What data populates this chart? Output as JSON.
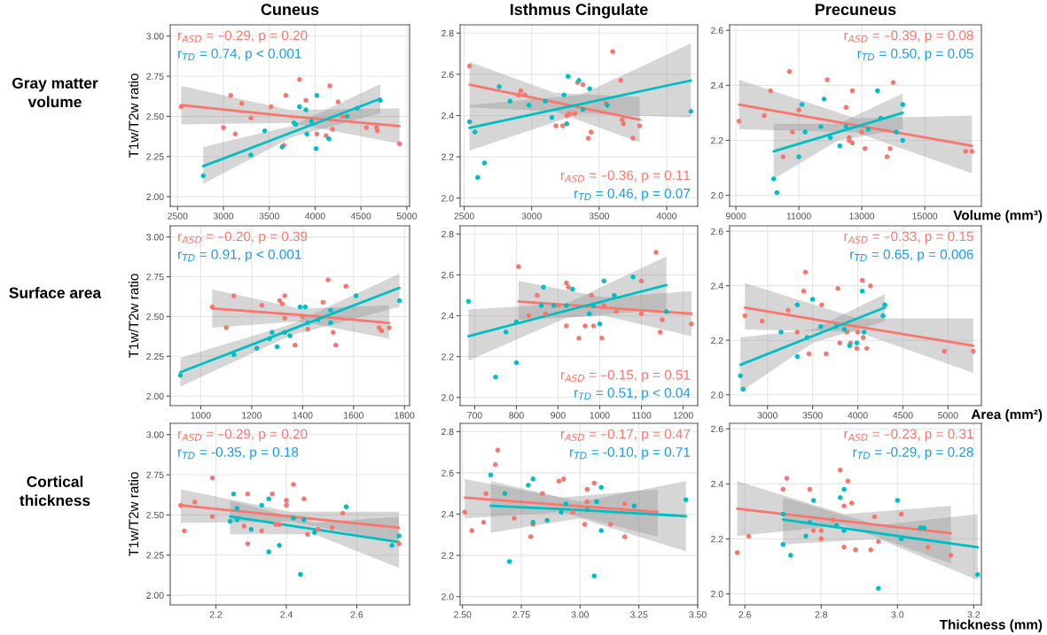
{
  "chart_data": [
    {
      "type": "scatter",
      "title": "Cuneus",
      "ylabel": "T1w/T2w ratio",
      "annotations": [
        "Gray matter volume",
        "r$_{ASD}$ = –0.29, p = 0.20",
        "r$_{TD}$ = 0.74, p < 0.001"
      ],
      "xlim": [
        2420,
        5030
      ],
      "xticks": [
        2500,
        3000,
        3500,
        4000,
        4500,
        5000
      ],
      "ylim": [
        1.94,
        3.07
      ],
      "yticks": [
        {
          "value": 2,
          "label": "2.00"
        },
        {
          "value": 2.25,
          "label": "2.25"
        },
        {
          "value": 2.5,
          "label": "2.50"
        },
        {
          "value": 2.75,
          "label": "2.75"
        },
        {
          "value": 3,
          "label": "3.00"
        }
      ],
      "grid": true,
      "marker": "circle",
      "series": [
        {
          "type": "scatter",
          "color": "#f8766d",
          "x": [
            2540,
            3000,
            3080,
            3130,
            3200,
            3300,
            3520,
            3660,
            3680,
            3830,
            3900,
            3970,
            4020,
            4120,
            4160,
            4190,
            4250,
            4300,
            4560,
            4670,
            4680,
            4920
          ],
          "values": [
            2.56,
            2.43,
            2.63,
            2.39,
            2.58,
            2.49,
            2.56,
            2.32,
            2.63,
            2.73,
            2.6,
            null,
            2.39,
            2.38,
            2.69,
            2.42,
            2.59,
            2.5,
            2.43,
            2.43,
            2.41,
            2.33
          ]
        },
        {
          "type": "scatter",
          "color": "#00bfc4",
          "x": [
            2780,
            3300,
            3450,
            3640,
            3770,
            3790,
            3830,
            3900,
            3910,
            3960,
            4010,
            4020,
            4150,
            4350,
            4460,
            4710
          ],
          "values": [
            2.13,
            2.26,
            2.41,
            2.31,
            2.46,
            2.45,
            2.56,
            2.54,
            2.39,
            2.47,
            2.3,
            2.63,
            2.36,
            2.5,
            2.55,
            2.6
          ]
        },
        {
          "type": "line",
          "marker": "none",
          "color": "#f8766d",
          "x": [
            2540,
            3730,
            4920
          ],
          "values": [
            2.57,
            2.5,
            2.44
          ],
          "lower": [
            2.45,
            2.46,
            2.33
          ],
          "upper": [
            2.69,
            2.54,
            2.55
          ]
        },
        {
          "type": "line",
          "marker": "none",
          "color": "#00bfc4",
          "x": [
            2780,
            3745,
            4710
          ],
          "values": [
            2.19,
            2.4,
            2.61
          ],
          "lower": [
            2.08,
            2.37,
            2.52
          ],
          "upper": [
            2.31,
            2.44,
            2.7
          ]
        }
      ]
    },
    {
      "type": "scatter",
      "title": "Isthmus Cingulate",
      "annotations": [
        "r$_{ASD}$ = –0.36, p = 0.11",
        "r$_{TD}$ = 0.46, p = 0.07"
      ],
      "xlim": [
        2470,
        4230
      ],
      "xticks": [
        2500,
        3000,
        3500,
        4000
      ],
      "ylim": [
        1.96,
        2.84
      ],
      "yticks": [
        {
          "value": 2,
          "label": "2.0"
        },
        2.2,
        2.4,
        2.6,
        2.8
      ],
      "grid": true,
      "marker": "circle",
      "series": [
        {
          "type": "scatter",
          "color": "#f8766d",
          "x": [
            2540,
            2900,
            2920,
            2950,
            3180,
            3230,
            3260,
            3280,
            3320,
            3340,
            3380,
            3420,
            3440,
            3550,
            3600,
            3660,
            3670,
            3680,
            3750,
            3800
          ],
          "values": [
            2.64,
            2.5,
            2.52,
            2.5,
            2.35,
            2.35,
            2.4,
            2.41,
            2.41,
            2.56,
            2.55,
            2.29,
            2.32,
            2.46,
            2.71,
            2.57,
            2.38,
            2.36,
            2.29,
            2.35
          ]
        },
        {
          "type": "scatter",
          "color": "#00bfc4",
          "x": [
            2540,
            2580,
            2600,
            2650,
            2760,
            2840,
            2980,
            3100,
            3150,
            3240,
            3260,
            3270,
            3350,
            3380,
            3430,
            3560,
            4180
          ],
          "values": [
            2.37,
            2.32,
            2.1,
            2.17,
            2.54,
            2.47,
            2.45,
            2.47,
            2.39,
            2.5,
            2.36,
            2.59,
            2.57,
            2.43,
            2.53,
            2.45,
            2.42
          ]
        },
        {
          "type": "line",
          "marker": "none",
          "color": "#f8766d",
          "x": [
            2540,
            3170,
            3800
          ],
          "values": [
            2.55,
            2.465,
            2.38
          ],
          "lower": [
            2.44,
            2.42,
            2.27
          ],
          "upper": [
            2.66,
            2.51,
            2.49
          ]
        },
        {
          "type": "line",
          "marker": "none",
          "color": "#00bfc4",
          "x": [
            2540,
            3360,
            4180
          ],
          "values": [
            2.34,
            2.455,
            2.57
          ],
          "lower": [
            2.23,
            2.41,
            2.39
          ],
          "upper": [
            2.45,
            2.5,
            2.75
          ]
        }
      ]
    },
    {
      "type": "scatter",
      "title": "Precuneus",
      "xlabel": "Volume (mm³)",
      "annotations": [
        "r$_{ASD}$ = –0.39, p = 0.08",
        "r$_{TD}$ = 0.50, p = 0.05"
      ],
      "xlim": [
        8800,
        16800
      ],
      "xticks": [
        9000,
        11000,
        13000,
        15000
      ],
      "ylim": [
        1.96,
        2.62
      ],
      "yticks": [
        {
          "value": 2,
          "label": "2.0"
        },
        2.2,
        2.4,
        2.6
      ],
      "grid": true,
      "marker": "circle",
      "series": [
        {
          "type": "scatter",
          "color": "#f8766d",
          "x": [
            9100,
            9900,
            10100,
            10500,
            10700,
            10800,
            11000,
            11900,
            12500,
            12600,
            12600,
            12700,
            12700,
            13000,
            13100,
            13800,
            13900,
            14000,
            14300,
            16300,
            16500
          ],
          "values": [
            2.27,
            2.29,
            2.38,
            2.14,
            2.45,
            2.23,
            2.31,
            2.42,
            2.32,
            2.2,
            2.21,
            2.19,
            2.38,
            2.23,
            2.17,
            2.14,
            2.17,
            2.41,
            null,
            2.16,
            2.16
          ]
        },
        {
          "type": "scatter",
          "color": "#00bfc4",
          "x": [
            10200,
            10300,
            11000,
            11100,
            11200,
            11700,
            11800,
            12000,
            12300,
            12500,
            13200,
            13500,
            13600,
            14100,
            14300,
            14300
          ],
          "values": [
            2.06,
            2.01,
            2.14,
            2.33,
            2.23,
            2.25,
            2.35,
            2.21,
            2.18,
            2.25,
            2.24,
            2.38,
            2.28,
            2.23,
            2.2,
            2.33
          ]
        },
        {
          "type": "line",
          "marker": "none",
          "color": "#f8766d",
          "x": [
            9100,
            12800,
            16500
          ],
          "values": [
            2.33,
            2.255,
            2.18
          ],
          "lower": [
            2.24,
            2.23,
            2.08
          ],
          "upper": [
            2.42,
            2.28,
            2.29
          ]
        },
        {
          "type": "line",
          "marker": "none",
          "color": "#00bfc4",
          "x": [
            10200,
            12250,
            14300
          ],
          "values": [
            2.16,
            2.23,
            2.3
          ],
          "lower": [
            2.06,
            2.2,
            2.24
          ],
          "upper": [
            2.26,
            2.26,
            2.37
          ]
        }
      ]
    },
    {
      "type": "scatter",
      "ylabel": "T1w/T2w ratio",
      "annotations": [
        "Surface area",
        "r$_{ASD}$ = –0.20, p = 0.39",
        "r$_{TD}$ = 0.91, p < 0.001"
      ],
      "xlim": [
        880,
        1820
      ],
      "xticks": [
        1000,
        1200,
        1400,
        1600,
        1800
      ],
      "ylim": [
        1.94,
        3.07
      ],
      "yticks": [
        {
          "value": 2,
          "label": "2.00"
        },
        {
          "value": 2.25,
          "label": "2.25"
        },
        {
          "value": 2.5,
          "label": "2.50"
        },
        {
          "value": 2.75,
          "label": "2.75"
        },
        {
          "value": 3,
          "label": "3.00"
        }
      ],
      "grid": true,
      "marker": "circle",
      "series": [
        {
          "type": "scatter",
          "color": "#f8766d",
          "x": [
            1045,
            1100,
            1130,
            1240,
            1310,
            1320,
            1330,
            1330,
            1370,
            1400,
            1420,
            1480,
            1500,
            1510,
            1520,
            1530,
            1570,
            1700,
            1710,
            1740
          ],
          "values": [
            2.56,
            2.43,
            2.63,
            2.57,
            2.6,
            2.58,
            2.63,
            2.49,
            2.32,
            2.5,
            2.42,
            2.59,
            2.73,
            null,
            2.4,
            2.32,
            2.69,
            2.43,
            2.41,
            2.43
          ]
        },
        {
          "type": "scatter",
          "color": "#00bfc4",
          "x": [
            920,
            1130,
            1220,
            1270,
            1280,
            1300,
            1330,
            1350,
            1390,
            1410,
            1420,
            1460,
            1510,
            1510,
            1610,
            1780
          ],
          "values": [
            2.13,
            2.26,
            2.3,
            2.36,
            2.4,
            2.31,
            2.4,
            2.38,
            2.56,
            2.56,
            2.46,
            2.48,
            2.54,
            2.46,
            2.63,
            2.6
          ]
        },
        {
          "type": "line",
          "marker": "none",
          "color": "#f8766d",
          "x": [
            1045,
            1390,
            1740
          ],
          "values": [
            2.55,
            2.51,
            2.46
          ],
          "lower": [
            2.43,
            2.47,
            2.36
          ],
          "upper": [
            2.67,
            2.55,
            2.57
          ]
        },
        {
          "type": "line",
          "marker": "none",
          "color": "#00bfc4",
          "x": [
            920,
            1350,
            1780
          ],
          "values": [
            2.15,
            2.415,
            2.68
          ],
          "lower": [
            2.06,
            2.38,
            2.56
          ],
          "upper": [
            2.24,
            2.45,
            2.77
          ]
        }
      ]
    },
    {
      "type": "scatter",
      "annotations": [
        "r$_{ASD}$ = –0.15, p = 0.51",
        "r$_{TD}$ = 0.51, p < 0.04"
      ],
      "xlim": [
        665,
        1235
      ],
      "xticks": [
        700,
        800,
        900,
        1000,
        1100,
        1200
      ],
      "ylim": [
        1.96,
        2.84
      ],
      "yticks": [
        {
          "value": 2,
          "label": "2.0"
        },
        2.2,
        2.4,
        2.6,
        2.8
      ],
      "grid": true,
      "marker": "circle",
      "series": [
        {
          "type": "scatter",
          "color": "#f8766d",
          "x": [
            805,
            830,
            850,
            870,
            900,
            920,
            925,
            920,
            950,
            965,
            980,
            985,
            1005,
            1010,
            1040,
            1100,
            1100,
            1135,
            1145,
            1150,
            1220
          ],
          "values": [
            2.64,
            2.4,
            2.5,
            2.41,
            2.45,
            2.56,
            2.54,
            2.35,
            2.29,
            2.35,
            2.5,
            2.35,
            2.29,
            2.45,
            2.42,
            2.57,
            2.41,
            2.71,
            2.32,
            2.38,
            2.36
          ]
        },
        {
          "type": "scatter",
          "color": "#00bfc4",
          "x": [
            685,
            750,
            775,
            800,
            800,
            860,
            865,
            890,
            920,
            935,
            975,
            985,
            1000,
            1010,
            1035,
            1080,
            1160
          ],
          "values": [
            2.47,
            2.1,
            2.32,
            2.17,
            2.37,
            2.45,
            2.54,
            2.45,
            2.45,
            2.53,
            2.41,
            2.45,
            2.36,
            2.57,
            2.5,
            2.59,
            2.42
          ]
        },
        {
          "type": "line",
          "marker": "none",
          "color": "#f8766d",
          "x": [
            805,
            1010,
            1220
          ],
          "values": [
            2.47,
            2.44,
            2.41
          ],
          "lower": [
            2.38,
            2.4,
            2.3
          ],
          "upper": [
            2.57,
            2.49,
            2.52
          ]
        },
        {
          "type": "line",
          "marker": "none",
          "color": "#00bfc4",
          "x": [
            685,
            920,
            1160
          ],
          "values": [
            2.3,
            2.425,
            2.55
          ],
          "lower": [
            2.18,
            2.39,
            2.43
          ],
          "upper": [
            2.43,
            2.46,
            2.69
          ]
        }
      ]
    },
    {
      "type": "scatter",
      "xlabel": "Area (mm²)",
      "annotations": [
        "r$_{ASD}$ = –0.33, p = 0.15",
        "r$_{TD}$ = 0.65, p = 0.006"
      ],
      "xlim": [
        2580,
        5370
      ],
      "xticks": [
        3000,
        3500,
        4000,
        4500,
        5000
      ],
      "ylim": [
        1.96,
        2.62
      ],
      "yticks": [
        {
          "value": 2,
          "label": "2.0"
        },
        2.2,
        2.4,
        2.6
      ],
      "grid": true,
      "marker": "circle",
      "series": [
        {
          "type": "scatter",
          "color": "#f8766d",
          "x": [
            2750,
            2940,
            3230,
            3330,
            3400,
            3420,
            3460,
            3600,
            3650,
            3780,
            3800,
            3880,
            3920,
            3990,
            4000,
            4050,
            4060,
            4100,
            4140,
            4960,
            5280
          ],
          "values": [
            2.29,
            2.27,
            2.31,
            2.23,
            2.38,
            2.45,
            2.15,
            2.33,
            2.15,
            2.39,
            2.19,
            2.23,
            2.19,
            2.17,
            2.23,
            2.42,
            2.21,
            2.17,
            2.4,
            2.16,
            2.16
          ]
        },
        {
          "type": "scatter",
          "color": "#00bfc4",
          "x": [
            2700,
            2730,
            3150,
            3330,
            3330,
            3440,
            3500,
            3590,
            3760,
            3850,
            3910,
            3990,
            4050,
            4070,
            4280,
            4300
          ],
          "values": [
            2.07,
            2.02,
            2.23,
            2.33,
            2.14,
            2.21,
            2.35,
            2.25,
            2.25,
            2.24,
            2.18,
            2.19,
            2.38,
            2.23,
            2.29,
            2.33
          ]
        },
        {
          "type": "line",
          "marker": "none",
          "color": "#f8766d",
          "x": [
            2750,
            4000,
            5280
          ],
          "values": [
            2.32,
            2.25,
            2.18
          ],
          "lower": [
            2.24,
            2.23,
            2.08
          ],
          "upper": [
            2.41,
            2.28,
            2.28
          ]
        },
        {
          "type": "line",
          "marker": "none",
          "color": "#00bfc4",
          "x": [
            2700,
            3500,
            4300
          ],
          "values": [
            2.11,
            2.215,
            2.32
          ],
          "lower": [
            2.01,
            2.19,
            2.27
          ],
          "upper": [
            2.21,
            2.24,
            2.37
          ]
        }
      ]
    },
    {
      "type": "scatter",
      "ylabel": "T1w/T2w ratio",
      "annotations": [
        "Cortical thickness",
        "r$_{ASD}$ = –0.29, p = 0.20",
        "r$_{TD}$ = -0.35, p = 0.18"
      ],
      "xlim": [
        2.07,
        2.75
      ],
      "xticks": [
        2.2,
        2.4,
        2.6
      ],
      "ylim": [
        1.94,
        3.07
      ],
      "yticks": [
        {
          "value": 2,
          "label": "2.00"
        },
        {
          "value": 2.25,
          "label": "2.25"
        },
        {
          "value": 2.5,
          "label": "2.50"
        },
        {
          "value": 2.75,
          "label": "2.75"
        },
        {
          "value": 3,
          "label": "3.00"
        }
      ],
      "grid": true,
      "marker": "circle",
      "series": [
        {
          "type": "scatter",
          "color": "#f8766d",
          "x": [
            2.1,
            2.11,
            2.14,
            2.19,
            2.19,
            2.28,
            2.29,
            2.29,
            2.33,
            2.36,
            2.37,
            2.38,
            2.4,
            2.4,
            2.42,
            2.45,
            2.46,
            2.49,
            2.53,
            2.56,
            2.72
          ],
          "values": [
            2.56,
            2.4,
            2.58,
            2.49,
            2.73,
            2.43,
            2.32,
            2.63,
            2.4,
            2.63,
            2.44,
            2.44,
            2.59,
            2.56,
            2.69,
            2.6,
            2.38,
            2.41,
            2.42,
            2.51,
            2.32
          ]
        },
        {
          "type": "scatter",
          "color": "#00bfc4",
          "x": [
            2.24,
            2.25,
            2.26,
            2.26,
            2.3,
            2.33,
            2.35,
            2.35,
            2.38,
            2.42,
            2.44,
            2.45,
            2.48,
            2.57,
            2.7,
            2.72
          ],
          "values": [
            2.46,
            2.63,
            2.54,
            2.47,
            2.41,
            2.56,
            2.27,
            2.6,
            2.31,
            2.48,
            2.13,
            2.47,
            2.39,
            2.55,
            2.31,
            2.37
          ]
        },
        {
          "type": "line",
          "marker": "none",
          "color": "#f8766d",
          "x": [
            2.1,
            2.41,
            2.72
          ],
          "values": [
            2.56,
            2.49,
            2.42
          ],
          "lower": [
            2.45,
            2.46,
            2.33
          ],
          "upper": [
            2.66,
            2.52,
            2.52
          ]
        },
        {
          "type": "line",
          "marker": "none",
          "color": "#00bfc4",
          "x": [
            2.24,
            2.48,
            2.72
          ],
          "values": [
            2.49,
            2.41,
            2.33
          ],
          "lower": [
            2.38,
            2.38,
            2.17
          ],
          "upper": [
            2.59,
            2.45,
            2.49
          ]
        }
      ]
    },
    {
      "type": "scatter",
      "annotations": [
        "r$_{ASD}$ = –0.17, p = 0.47",
        "r$_{TD}$ = -0.10, p = 0.71"
      ],
      "xlim": [
        2.49,
        3.5
      ],
      "xticks": [
        {
          "value": 2.5,
          "label": "2.50"
        },
        {
          "value": 2.75,
          "label": "2.75"
        },
        {
          "value": 3,
          "label": "3.00"
        },
        {
          "value": 3.25,
          "label": "3.25"
        },
        {
          "value": 3.5,
          "label": "3.50"
        }
      ],
      "ylim": [
        1.96,
        2.84
      ],
      "yticks": [
        {
          "value": 2,
          "label": "2.0"
        },
        2.2,
        2.4,
        2.6,
        2.8
      ],
      "grid": true,
      "marker": "circle",
      "series": [
        {
          "type": "scatter",
          "color": "#f8766d",
          "x": [
            2.51,
            2.54,
            2.59,
            2.6,
            2.64,
            2.65,
            2.72,
            2.79,
            2.8,
            2.84,
            2.91,
            2.93,
            2.97,
            3.02,
            3.03,
            3.03,
            3.06,
            3.13,
            3.19,
            3.19
          ],
          "values": [
            2.41,
            2.32,
            2.36,
            2.5,
            2.64,
            2.71,
            2.38,
            2.29,
            2.35,
            2.5,
            2.56,
            2.57,
            2.41,
            2.35,
            2.52,
            2.46,
            2.55,
            2.35,
            2.29,
            2.45
          ]
        },
        {
          "type": "scatter",
          "color": "#00bfc4",
          "x": [
            2.62,
            2.68,
            2.7,
            2.78,
            2.8,
            2.8,
            2.86,
            2.92,
            2.94,
            3.03,
            3.06,
            3.07,
            3.09,
            3.09,
            3.23,
            3.45
          ],
          "values": [
            2.59,
            2.5,
            2.17,
            2.54,
            2.36,
            2.57,
            2.37,
            2.41,
            2.45,
            2.42,
            2.1,
            2.46,
            2.32,
            2.53,
            2.44,
            2.47
          ]
        },
        {
          "type": "line",
          "marker": "none",
          "color": "#f8766d",
          "x": [
            2.51,
            2.92,
            3.33
          ],
          "values": [
            2.48,
            2.445,
            2.41
          ],
          "lower": [
            2.38,
            2.41,
            2.29
          ],
          "upper": [
            2.57,
            2.48,
            2.52
          ]
        },
        {
          "type": "line",
          "marker": "none",
          "color": "#00bfc4",
          "x": [
            2.62,
            3.0,
            3.45
          ],
          "values": [
            2.44,
            2.42,
            2.39
          ],
          "lower": [
            2.31,
            2.38,
            2.22
          ],
          "upper": [
            2.56,
            2.46,
            2.56
          ]
        }
      ]
    },
    {
      "type": "scatter",
      "xlabel": "Thickness (mm)",
      "annotations": [
        "r$_{ASD}$ = –0.23, p = 0.31",
        "r$_{TD}$ = -0.29, p = 0.28"
      ],
      "xlim": [
        2.56,
        3.22
      ],
      "xticks": [
        2.6,
        2.8,
        {
          "value": 3,
          "label": "3.0"
        },
        3.2
      ],
      "ylim": [
        1.96,
        2.62
      ],
      "yticks": [
        {
          "value": 2,
          "label": "2.0"
        },
        2.2,
        2.4,
        2.6
      ],
      "grid": true,
      "marker": "circle",
      "series": [
        {
          "type": "scatter",
          "color": "#f8766d",
          "x": [
            2.58,
            2.61,
            2.7,
            2.71,
            2.77,
            2.78,
            2.8,
            2.8,
            2.83,
            2.85,
            2.86,
            2.86,
            2.87,
            2.88,
            2.89,
            2.93,
            2.94,
            2.95,
            3.01,
            3.08,
            3.14
          ],
          "values": [
            2.15,
            2.21,
            2.38,
            2.42,
            2.38,
            2.23,
            2.23,
            2.2,
            2.27,
            2.45,
            2.32,
            2.17,
            2.41,
            2.33,
            2.16,
            2.16,
            2.28,
            2.19,
            2.29,
            2.17,
            2.14
          ]
        },
        {
          "type": "scatter",
          "color": "#00bfc4",
          "x": [
            2.7,
            2.7,
            2.72,
            2.76,
            2.77,
            2.78,
            2.84,
            2.85,
            2.86,
            2.86,
            2.95,
            3.0,
            3.01,
            3.06,
            3.07,
            3.21
          ],
          "values": [
            2.18,
            2.29,
            2.14,
            2.21,
            2.26,
            2.34,
            2.25,
            2.35,
            2.38,
            2.23,
            2.02,
            2.34,
            2.2,
            2.24,
            2.24,
            2.07
          ]
        },
        {
          "type": "line",
          "marker": "none",
          "color": "#f8766d",
          "x": [
            2.58,
            2.86,
            3.14
          ],
          "values": [
            2.31,
            2.265,
            2.22
          ],
          "lower": [
            2.21,
            2.25,
            2.11
          ],
          "upper": [
            2.41,
            2.29,
            2.32
          ]
        },
        {
          "type": "line",
          "marker": "none",
          "color": "#00bfc4",
          "x": [
            2.7,
            2.95,
            3.21
          ],
          "values": [
            2.27,
            2.22,
            2.17
          ],
          "lower": [
            2.18,
            2.2,
            2.05
          ],
          "upper": [
            2.35,
            2.25,
            2.29
          ]
        }
      ]
    }
  ]
}
